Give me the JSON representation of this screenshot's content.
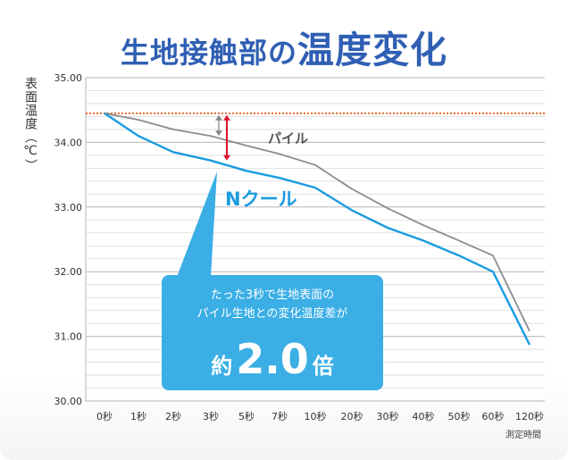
{
  "title": {
    "part1": "生地接触部の",
    "part2": "温度変化"
  },
  "chart_data": {
    "type": "line",
    "ylabel": "表面温度（℃）",
    "xlabel": "測定時間",
    "categories": [
      "0秒",
      "1秒",
      "2秒",
      "3秒",
      "5秒",
      "7秒",
      "10秒",
      "20秒",
      "30秒",
      "40秒",
      "50秒",
      "60秒",
      "120秒"
    ],
    "yticks": [
      "35.00",
      "34.00",
      "33.00",
      "32.00",
      "31.00",
      "30.00"
    ],
    "ylim": [
      30,
      35
    ],
    "reference_line": {
      "value": 34.45,
      "color": "#e8692a"
    },
    "series": [
      {
        "name": "パイル",
        "color": "#8c8c8c",
        "values": [
          34.45,
          34.35,
          34.2,
          34.1,
          33.95,
          33.82,
          33.65,
          33.28,
          32.98,
          32.72,
          32.48,
          32.25,
          31.08
        ]
      },
      {
        "name": "Nクール",
        "color": "#1a9be0",
        "values": [
          34.45,
          34.1,
          33.85,
          33.72,
          33.56,
          33.45,
          33.3,
          32.95,
          32.68,
          32.48,
          32.25,
          32.0,
          30.87
        ]
      }
    ],
    "callout": {
      "line1": "たった3秒で生地表面の",
      "line2": "パイル生地との変化温度差が",
      "prefix": "約",
      "value": "2.0",
      "suffix": "倍"
    }
  }
}
